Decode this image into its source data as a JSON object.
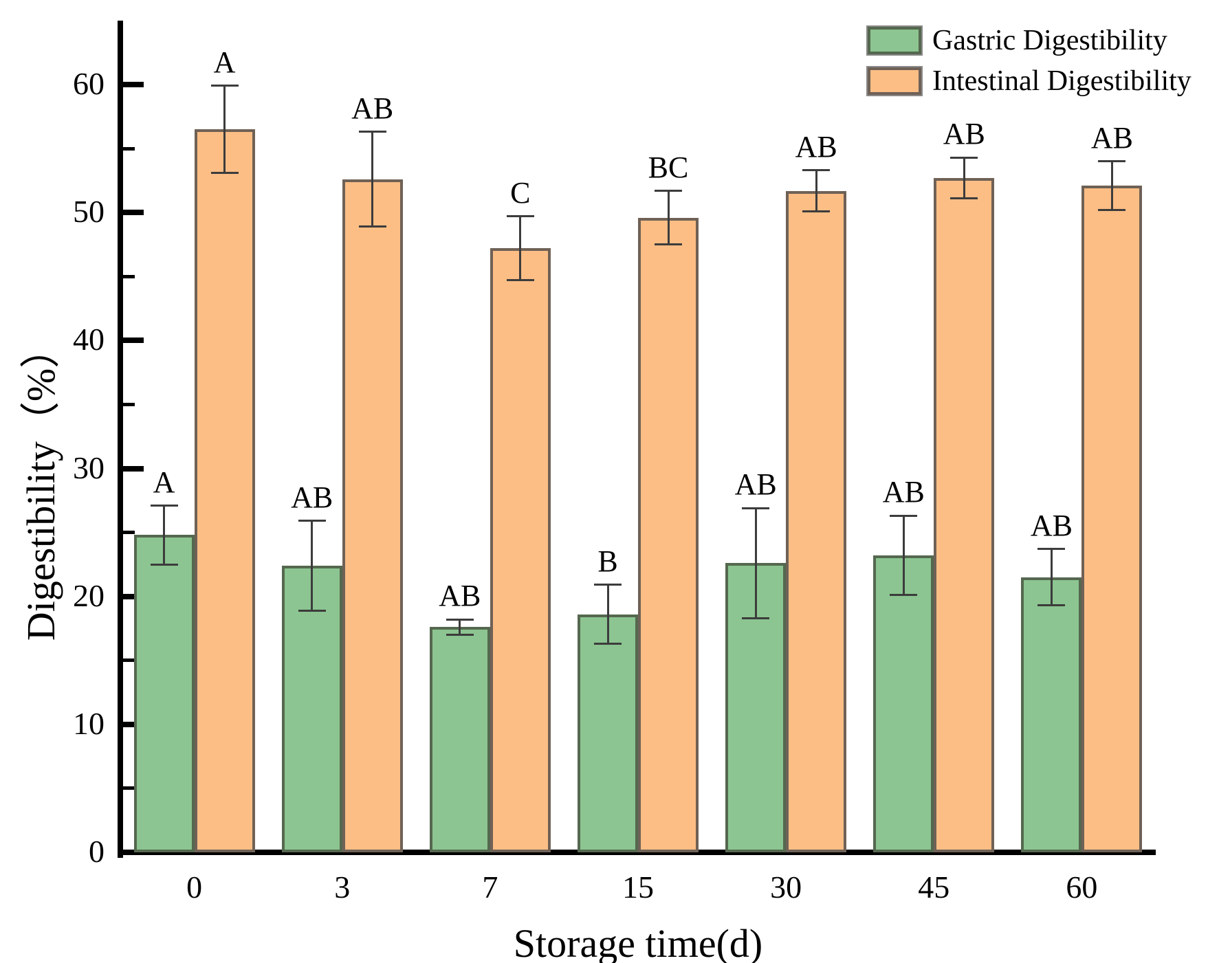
{
  "chart_data": {
    "type": "bar",
    "title": "",
    "xlabel": "Storage time(d)",
    "ylabel": "Digestibility（%）",
    "categories": [
      "0",
      "3",
      "7",
      "15",
      "30",
      "45",
      "60"
    ],
    "series": [
      {
        "name": "Gastric Digestibility",
        "fill_color": "#8cc591",
        "edge_color": "#55684f",
        "values": [
          24.8,
          22.4,
          17.6,
          18.6,
          22.6,
          23.2,
          21.5
        ],
        "errors": [
          2.3,
          3.5,
          0.6,
          2.3,
          4.3,
          3.1,
          2.2
        ],
        "letters": [
          "A",
          "AB",
          "AB",
          "B",
          "AB",
          "AB",
          "AB"
        ]
      },
      {
        "name": "Intestinal Digestibility",
        "fill_color": "#fcbe85",
        "edge_color": "#6f6156",
        "values": [
          56.5,
          52.6,
          47.2,
          49.6,
          51.7,
          52.7,
          52.1
        ],
        "errors": [
          3.4,
          3.7,
          2.5,
          2.1,
          1.6,
          1.6,
          1.9
        ],
        "letters": [
          "A",
          "AB",
          "C",
          "BC",
          "AB",
          "AB",
          "AB"
        ]
      }
    ],
    "ylim": [
      0,
      65
    ],
    "yticks_major": [
      0,
      10,
      20,
      30,
      40,
      50,
      60
    ],
    "yticks_minor": [
      5,
      15,
      25,
      35,
      45,
      55
    ],
    "error_bar_color": "#3c3c3c",
    "axis_color": "#000000",
    "legend_position": "top-right",
    "grid": false
  }
}
